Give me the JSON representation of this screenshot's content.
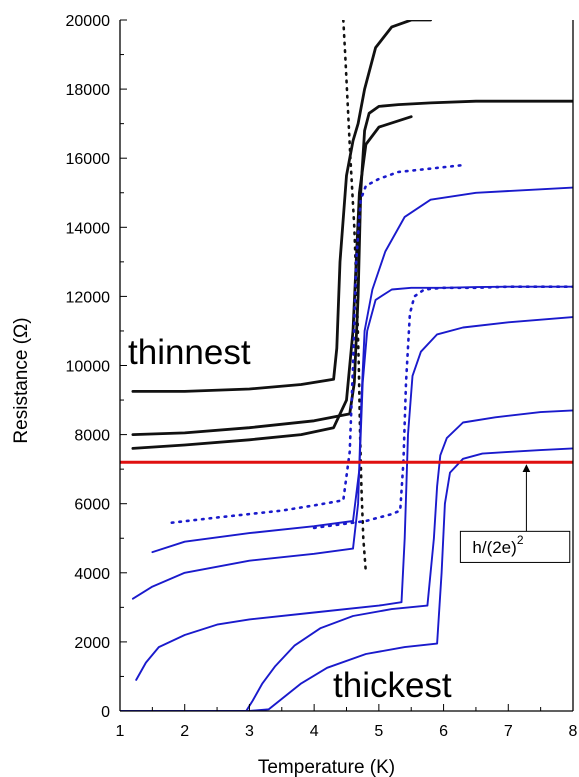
{
  "chart_data": {
    "type": "line",
    "xlabel": "Temperature (K)",
    "ylabel": "Resistance (Ω)",
    "xlim": [
      1,
      8
    ],
    "ylim": [
      0,
      20000
    ],
    "xticks": [
      1,
      2,
      3,
      4,
      5,
      6,
      7,
      8
    ],
    "yticks": [
      0,
      2000,
      4000,
      6000,
      8000,
      10000,
      12000,
      14000,
      16000,
      18000,
      20000
    ],
    "grid": false,
    "legend": "none",
    "colors": {
      "black": "#111111",
      "blue": "#1a1acc",
      "red": "#e01010"
    },
    "series": [
      {
        "color": "black",
        "style": "dots",
        "x": [
          4.45,
          4.48,
          4.52,
          4.56,
          4.62,
          4.66,
          4.69,
          4.71,
          4.73,
          4.76,
          4.8
        ],
        "y": [
          20000,
          19000,
          17500,
          16000,
          14000,
          12000,
          10000,
          8000,
          6500,
          5000,
          4000
        ]
      },
      {
        "color": "black",
        "style": "line",
        "x": [
          1.2,
          2.0,
          3.0,
          3.8,
          4.3,
          4.35,
          4.4,
          4.5,
          4.6,
          4.68,
          4.78,
          4.95,
          5.2,
          5.5,
          5.8
        ],
        "y": [
          9250,
          9250,
          9320,
          9450,
          9600,
          10500,
          13000,
          15500,
          16500,
          17000,
          18000,
          19200,
          19800,
          20000,
          20000
        ]
      },
      {
        "color": "black",
        "style": "line",
        "x": [
          1.2,
          2.0,
          3.0,
          4.0,
          4.55,
          4.62,
          4.68,
          4.72,
          4.78,
          4.85,
          5.0,
          5.3,
          5.8,
          6.5,
          7.5,
          8.0
        ],
        "y": [
          8000,
          8050,
          8200,
          8400,
          8600,
          9500,
          12000,
          15000,
          16800,
          17300,
          17500,
          17550,
          17600,
          17650,
          17650,
          17650
        ]
      },
      {
        "color": "black",
        "style": "line",
        "x": [
          1.2,
          2.0,
          3.0,
          3.8,
          4.3,
          4.5,
          4.6,
          4.65,
          4.7,
          4.8,
          5.0,
          5.5
        ],
        "y": [
          7600,
          7700,
          7850,
          8000,
          8200,
          9000,
          11000,
          13000,
          15000,
          16400,
          16900,
          17200
        ]
      },
      {
        "color": "blue",
        "style": "dots",
        "x": [
          1.8,
          2.5,
          3.5,
          4.0,
          4.3,
          4.45,
          4.55,
          4.6,
          4.65,
          4.72,
          4.8,
          5.0,
          5.3,
          5.8,
          6.3
        ],
        "y": [
          5450,
          5600,
          5800,
          5950,
          6050,
          6100,
          7500,
          10000,
          13000,
          14800,
          15200,
          15400,
          15600,
          15700,
          15800
        ]
      },
      {
        "color": "blue",
        "style": "line",
        "x": [
          1.5,
          2.0,
          3.0,
          4.0,
          4.6,
          4.7,
          4.75,
          4.82,
          4.95,
          5.2,
          5.5,
          6.0,
          6.5,
          7.0,
          7.5,
          8.0
        ],
        "y": [
          4600,
          4900,
          5150,
          5350,
          5500,
          7000,
          9500,
          11000,
          11900,
          12200,
          12250,
          12250,
          12270,
          12280,
          12280,
          12280
        ]
      },
      {
        "color": "blue",
        "style": "line",
        "x": [
          1.2,
          1.5,
          2.0,
          3.0,
          4.0,
          4.6,
          4.68,
          4.73,
          4.78,
          4.9,
          5.1,
          5.4,
          5.8,
          6.5,
          7.5,
          8.0
        ],
        "y": [
          3250,
          3600,
          4000,
          4350,
          4550,
          4700,
          6000,
          9000,
          11000,
          12200,
          13300,
          14300,
          14800,
          15000,
          15100,
          15150
        ]
      },
      {
        "color": "blue",
        "style": "dots",
        "x": [
          4.0,
          4.8,
          5.2,
          5.33,
          5.38,
          5.42,
          5.48,
          5.55,
          5.7,
          6.0,
          6.5,
          7.0,
          7.5,
          8.0
        ],
        "y": [
          5300,
          5500,
          5700,
          5800,
          7200,
          9500,
          11500,
          12000,
          12200,
          12250,
          12250,
          12280,
          12280,
          12280
        ]
      },
      {
        "color": "blue",
        "style": "line",
        "x": [
          1.25,
          1.4,
          1.6,
          2.0,
          2.5,
          3.0,
          4.0,
          5.0,
          5.35,
          5.4,
          5.45,
          5.52,
          5.65,
          5.9,
          6.3,
          7.0,
          8.0
        ],
        "y": [
          900,
          1400,
          1850,
          2200,
          2500,
          2650,
          2850,
          3050,
          3150,
          5000,
          8000,
          9700,
          10400,
          10900,
          11100,
          11250,
          11400
        ]
      },
      {
        "color": "blue",
        "style": "line",
        "x": [
          2.95,
          3.05,
          3.2,
          3.4,
          3.7,
          4.1,
          4.6,
          5.2,
          5.75,
          5.85,
          5.9,
          5.95,
          6.05,
          6.3,
          6.8,
          7.5,
          8.0
        ],
        "y": [
          0,
          300,
          800,
          1300,
          1900,
          2400,
          2750,
          2950,
          3050,
          5000,
          6500,
          7400,
          7900,
          8350,
          8500,
          8650,
          8700
        ]
      },
      {
        "color": "blue",
        "style": "line",
        "x": [
          1.0,
          2.0,
          3.0,
          3.3,
          3.5,
          3.8,
          4.2,
          4.8,
          5.4,
          5.9,
          5.97,
          6.02,
          6.1,
          6.3,
          6.6,
          7.0,
          7.5,
          8.0
        ],
        "y": [
          0,
          0,
          0,
          50,
          350,
          800,
          1250,
          1650,
          1850,
          1950,
          4000,
          6000,
          6900,
          7300,
          7450,
          7500,
          7550,
          7600
        ]
      }
    ],
    "reference_line": {
      "y": 7200,
      "label": "h/(2e)",
      "superscript": "2"
    },
    "annotations": {
      "top": "thinnest",
      "bottom": "thickest"
    }
  }
}
